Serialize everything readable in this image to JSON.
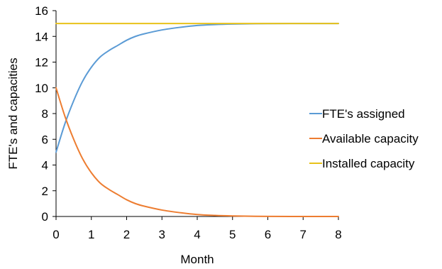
{
  "chart_data": {
    "type": "line",
    "title": "",
    "xlabel": "Month",
    "ylabel": "FTE's and capacities",
    "xlim": [
      0,
      8
    ],
    "ylim": [
      0,
      16
    ],
    "x_ticks": [
      "0",
      "1",
      "2",
      "3",
      "4",
      "5",
      "6",
      "7",
      "8"
    ],
    "y_ticks": [
      "0",
      "2",
      "4",
      "6",
      "8",
      "10",
      "12",
      "14",
      "16"
    ],
    "grid": false,
    "legend_position": "right",
    "series": [
      {
        "name": "FTE's assigned",
        "color": "#5b9bd5",
        "x": [
          0,
          0.25,
          0.5,
          0.75,
          1,
          1.25,
          1.5,
          1.75,
          2,
          2.25,
          2.5,
          3,
          3.5,
          4,
          4.5,
          5,
          5.5,
          6,
          7,
          8
        ],
        "y": [
          5,
          7.2,
          9.0,
          10.5,
          11.6,
          12.4,
          12.9,
          13.3,
          13.7,
          14.0,
          14.2,
          14.5,
          14.7,
          14.85,
          14.92,
          14.96,
          14.98,
          14.99,
          15.0,
          15.0
        ]
      },
      {
        "name": "Available capacity",
        "color": "#ed7d31",
        "x": [
          0,
          0.25,
          0.5,
          0.75,
          1,
          1.25,
          1.5,
          1.75,
          2,
          2.25,
          2.5,
          3,
          3.5,
          4,
          4.5,
          5,
          5.5,
          6,
          7,
          8
        ],
        "y": [
          10,
          7.8,
          6.0,
          4.5,
          3.4,
          2.6,
          2.1,
          1.7,
          1.3,
          1.0,
          0.8,
          0.5,
          0.3,
          0.15,
          0.08,
          0.04,
          0.02,
          0.01,
          0.0,
          0.0
        ]
      },
      {
        "name": "Installed capacity",
        "color": "#e8c21a",
        "x": [
          0,
          8
        ],
        "y": [
          15,
          15
        ]
      }
    ]
  }
}
